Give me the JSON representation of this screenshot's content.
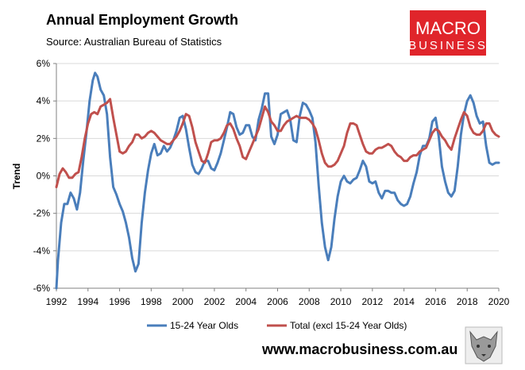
{
  "title": "Annual Employment Growth",
  "subtitle": "Source: Australian Bureau of Statistics",
  "website": "www.macrobusiness.com.au",
  "logo": {
    "line1": "MACRO",
    "line2": "BUSINESS",
    "color": "#e0252b"
  },
  "chart_data": {
    "type": "line",
    "ylabel": "Trend",
    "xlabel": "",
    "xlim": [
      1992,
      2020
    ],
    "ylim": [
      -6,
      6
    ],
    "yticks": [
      "-6%",
      "-4%",
      "-2%",
      "0%",
      "2%",
      "4%",
      "6%"
    ],
    "xticks": [
      "1992",
      "1994",
      "1996",
      "1998",
      "2000",
      "2002",
      "2004",
      "2006",
      "2008",
      "2010",
      "2012",
      "2014",
      "2016",
      "2018",
      "2020"
    ],
    "grid": "horizontal",
    "legend": "bottom",
    "series": [
      {
        "name": "15-24 Year Olds",
        "color": "#4a7ebb",
        "points": [
          [
            1992.0,
            -6.0
          ],
          [
            1992.1,
            -4.5
          ],
          [
            1992.3,
            -2.5
          ],
          [
            1992.5,
            -1.5
          ],
          [
            1992.7,
            -1.5
          ],
          [
            1992.9,
            -0.9
          ],
          [
            1993.1,
            -1.2
          ],
          [
            1993.3,
            -1.8
          ],
          [
            1993.5,
            -0.9
          ],
          [
            1993.7,
            0.8
          ],
          [
            1993.9,
            2.3
          ],
          [
            1994.1,
            4.0
          ],
          [
            1994.3,
            5.1
          ],
          [
            1994.45,
            5.5
          ],
          [
            1994.6,
            5.3
          ],
          [
            1994.8,
            4.6
          ],
          [
            1995.0,
            4.3
          ],
          [
            1995.2,
            3.3
          ],
          [
            1995.4,
            1.0
          ],
          [
            1995.6,
            -0.6
          ],
          [
            1995.8,
            -1.0
          ],
          [
            1996.0,
            -1.5
          ],
          [
            1996.2,
            -1.9
          ],
          [
            1996.4,
            -2.5
          ],
          [
            1996.6,
            -3.3
          ],
          [
            1996.8,
            -4.4
          ],
          [
            1997.0,
            -5.1
          ],
          [
            1997.2,
            -4.7
          ],
          [
            1997.4,
            -2.5
          ],
          [
            1997.6,
            -0.9
          ],
          [
            1997.8,
            0.3
          ],
          [
            1998.0,
            1.2
          ],
          [
            1998.2,
            1.7
          ],
          [
            1998.4,
            1.1
          ],
          [
            1998.6,
            1.2
          ],
          [
            1998.8,
            1.6
          ],
          [
            1999.0,
            1.3
          ],
          [
            1999.2,
            1.5
          ],
          [
            1999.4,
            1.9
          ],
          [
            1999.6,
            2.4
          ],
          [
            1999.8,
            3.1
          ],
          [
            2000.0,
            3.2
          ],
          [
            2000.2,
            2.5
          ],
          [
            2000.4,
            1.5
          ],
          [
            2000.6,
            0.6
          ],
          [
            2000.8,
            0.2
          ],
          [
            2001.0,
            0.1
          ],
          [
            2001.2,
            0.4
          ],
          [
            2001.4,
            0.8
          ],
          [
            2001.6,
            0.8
          ],
          [
            2001.8,
            0.4
          ],
          [
            2002.0,
            0.3
          ],
          [
            2002.2,
            0.7
          ],
          [
            2002.4,
            1.2
          ],
          [
            2002.6,
            1.9
          ],
          [
            2002.8,
            2.6
          ],
          [
            2003.0,
            3.4
          ],
          [
            2003.2,
            3.3
          ],
          [
            2003.4,
            2.6
          ],
          [
            2003.6,
            2.2
          ],
          [
            2003.8,
            2.3
          ],
          [
            2004.0,
            2.7
          ],
          [
            2004.2,
            2.7
          ],
          [
            2004.4,
            2.1
          ],
          [
            2004.6,
            1.9
          ],
          [
            2004.8,
            3.0
          ],
          [
            2005.0,
            3.6
          ],
          [
            2005.2,
            4.4
          ],
          [
            2005.4,
            4.4
          ],
          [
            2005.6,
            2.1
          ],
          [
            2005.8,
            1.7
          ],
          [
            2006.0,
            2.2
          ],
          [
            2006.2,
            3.3
          ],
          [
            2006.4,
            3.4
          ],
          [
            2006.6,
            3.5
          ],
          [
            2006.8,
            3.0
          ],
          [
            2007.0,
            1.9
          ],
          [
            2007.2,
            1.8
          ],
          [
            2007.4,
            3.2
          ],
          [
            2007.6,
            3.9
          ],
          [
            2007.8,
            3.8
          ],
          [
            2008.0,
            3.5
          ],
          [
            2008.2,
            3.1
          ],
          [
            2008.4,
            1.8
          ],
          [
            2008.6,
            -0.5
          ],
          [
            2008.8,
            -2.5
          ],
          [
            2009.0,
            -3.8
          ],
          [
            2009.2,
            -4.5
          ],
          [
            2009.4,
            -3.8
          ],
          [
            2009.6,
            -2.3
          ],
          [
            2009.8,
            -1.1
          ],
          [
            2010.0,
            -0.3
          ],
          [
            2010.2,
            0.0
          ],
          [
            2010.4,
            -0.3
          ],
          [
            2010.6,
            -0.4
          ],
          [
            2010.8,
            -0.2
          ],
          [
            2011.0,
            -0.1
          ],
          [
            2011.2,
            0.3
          ],
          [
            2011.4,
            0.8
          ],
          [
            2011.6,
            0.5
          ],
          [
            2011.8,
            -0.3
          ],
          [
            2012.0,
            -0.4
          ],
          [
            2012.2,
            -0.3
          ],
          [
            2012.4,
            -0.9
          ],
          [
            2012.6,
            -1.2
          ],
          [
            2012.8,
            -0.8
          ],
          [
            2013.0,
            -0.8
          ],
          [
            2013.2,
            -0.9
          ],
          [
            2013.4,
            -0.9
          ],
          [
            2013.6,
            -1.3
          ],
          [
            2013.8,
            -1.5
          ],
          [
            2014.0,
            -1.6
          ],
          [
            2014.2,
            -1.5
          ],
          [
            2014.4,
            -1.1
          ],
          [
            2014.6,
            -0.4
          ],
          [
            2014.8,
            0.2
          ],
          [
            2015.0,
            1.1
          ],
          [
            2015.2,
            1.6
          ],
          [
            2015.4,
            1.6
          ],
          [
            2015.6,
            2.0
          ],
          [
            2015.8,
            2.9
          ],
          [
            2016.0,
            3.1
          ],
          [
            2016.2,
            2.1
          ],
          [
            2016.4,
            0.5
          ],
          [
            2016.6,
            -0.3
          ],
          [
            2016.8,
            -0.9
          ],
          [
            2017.0,
            -1.1
          ],
          [
            2017.2,
            -0.8
          ],
          [
            2017.4,
            0.5
          ],
          [
            2017.6,
            2.2
          ],
          [
            2017.8,
            3.3
          ],
          [
            2018.0,
            4.0
          ],
          [
            2018.2,
            4.3
          ],
          [
            2018.4,
            3.9
          ],
          [
            2018.6,
            3.2
          ],
          [
            2018.8,
            2.8
          ],
          [
            2019.0,
            2.9
          ],
          [
            2019.2,
            1.6
          ],
          [
            2019.4,
            0.7
          ],
          [
            2019.6,
            0.6
          ],
          [
            2019.8,
            0.7
          ],
          [
            2020.0,
            0.7
          ]
        ]
      },
      {
        "name": "Total (excl 15-24 Year Olds)",
        "color": "#c0504d",
        "points": [
          [
            1992.0,
            -0.6
          ],
          [
            1992.2,
            0.1
          ],
          [
            1992.4,
            0.4
          ],
          [
            1992.6,
            0.2
          ],
          [
            1992.8,
            -0.1
          ],
          [
            1993.0,
            -0.1
          ],
          [
            1993.2,
            0.1
          ],
          [
            1993.4,
            0.2
          ],
          [
            1993.6,
            1.0
          ],
          [
            1993.8,
            2.0
          ],
          [
            1994.0,
            2.8
          ],
          [
            1994.2,
            3.3
          ],
          [
            1994.4,
            3.4
          ],
          [
            1994.6,
            3.3
          ],
          [
            1994.8,
            3.7
          ],
          [
            1995.0,
            3.8
          ],
          [
            1995.2,
            3.9
          ],
          [
            1995.4,
            4.1
          ],
          [
            1995.6,
            3.1
          ],
          [
            1995.8,
            2.2
          ],
          [
            1996.0,
            1.3
          ],
          [
            1996.2,
            1.2
          ],
          [
            1996.4,
            1.3
          ],
          [
            1996.6,
            1.6
          ],
          [
            1996.8,
            1.8
          ],
          [
            1997.0,
            2.2
          ],
          [
            1997.2,
            2.2
          ],
          [
            1997.4,
            2.0
          ],
          [
            1997.6,
            2.1
          ],
          [
            1997.8,
            2.3
          ],
          [
            1998.0,
            2.4
          ],
          [
            1998.2,
            2.3
          ],
          [
            1998.4,
            2.1
          ],
          [
            1998.6,
            1.9
          ],
          [
            1998.8,
            1.8
          ],
          [
            1999.0,
            1.7
          ],
          [
            1999.2,
            1.7
          ],
          [
            1999.4,
            1.9
          ],
          [
            1999.6,
            2.1
          ],
          [
            1999.8,
            2.4
          ],
          [
            2000.0,
            2.8
          ],
          [
            2000.2,
            3.3
          ],
          [
            2000.4,
            3.2
          ],
          [
            2000.6,
            2.6
          ],
          [
            2000.8,
            1.8
          ],
          [
            2001.0,
            1.3
          ],
          [
            2001.2,
            0.8
          ],
          [
            2001.4,
            0.7
          ],
          [
            2001.6,
            1.2
          ],
          [
            2001.8,
            1.8
          ],
          [
            2002.0,
            1.9
          ],
          [
            2002.2,
            1.9
          ],
          [
            2002.4,
            2.0
          ],
          [
            2002.6,
            2.3
          ],
          [
            2002.8,
            2.7
          ],
          [
            2003.0,
            2.8
          ],
          [
            2003.2,
            2.5
          ],
          [
            2003.4,
            2.0
          ],
          [
            2003.6,
            1.6
          ],
          [
            2003.8,
            1.0
          ],
          [
            2004.0,
            0.9
          ],
          [
            2004.2,
            1.3
          ],
          [
            2004.4,
            1.7
          ],
          [
            2004.6,
            2.1
          ],
          [
            2004.8,
            2.5
          ],
          [
            2005.0,
            3.1
          ],
          [
            2005.2,
            3.7
          ],
          [
            2005.4,
            3.4
          ],
          [
            2005.6,
            2.9
          ],
          [
            2005.8,
            2.7
          ],
          [
            2006.0,
            2.4
          ],
          [
            2006.2,
            2.4
          ],
          [
            2006.4,
            2.7
          ],
          [
            2006.6,
            2.9
          ],
          [
            2006.8,
            3.0
          ],
          [
            2007.0,
            3.1
          ],
          [
            2007.2,
            3.2
          ],
          [
            2007.4,
            3.1
          ],
          [
            2007.6,
            3.1
          ],
          [
            2007.8,
            3.1
          ],
          [
            2008.0,
            3.0
          ],
          [
            2008.2,
            2.8
          ],
          [
            2008.4,
            2.5
          ],
          [
            2008.6,
            1.9
          ],
          [
            2008.8,
            1.2
          ],
          [
            2009.0,
            0.7
          ],
          [
            2009.2,
            0.5
          ],
          [
            2009.4,
            0.5
          ],
          [
            2009.6,
            0.6
          ],
          [
            2009.8,
            0.8
          ],
          [
            2010.0,
            1.2
          ],
          [
            2010.2,
            1.6
          ],
          [
            2010.4,
            2.3
          ],
          [
            2010.6,
            2.8
          ],
          [
            2010.8,
            2.8
          ],
          [
            2011.0,
            2.7
          ],
          [
            2011.2,
            2.2
          ],
          [
            2011.4,
            1.7
          ],
          [
            2011.6,
            1.3
          ],
          [
            2011.8,
            1.2
          ],
          [
            2012.0,
            1.2
          ],
          [
            2012.2,
            1.4
          ],
          [
            2012.4,
            1.5
          ],
          [
            2012.6,
            1.5
          ],
          [
            2012.8,
            1.6
          ],
          [
            2013.0,
            1.7
          ],
          [
            2013.2,
            1.6
          ],
          [
            2013.4,
            1.3
          ],
          [
            2013.6,
            1.1
          ],
          [
            2013.8,
            1.0
          ],
          [
            2014.0,
            0.8
          ],
          [
            2014.2,
            0.8
          ],
          [
            2014.4,
            1.0
          ],
          [
            2014.6,
            1.1
          ],
          [
            2014.8,
            1.1
          ],
          [
            2015.0,
            1.3
          ],
          [
            2015.2,
            1.4
          ],
          [
            2015.4,
            1.5
          ],
          [
            2015.6,
            1.9
          ],
          [
            2015.8,
            2.3
          ],
          [
            2016.0,
            2.5
          ],
          [
            2016.2,
            2.4
          ],
          [
            2016.4,
            2.1
          ],
          [
            2016.6,
            1.9
          ],
          [
            2016.8,
            1.6
          ],
          [
            2017.0,
            1.4
          ],
          [
            2017.2,
            2.0
          ],
          [
            2017.4,
            2.5
          ],
          [
            2017.6,
            3.0
          ],
          [
            2017.8,
            3.4
          ],
          [
            2018.0,
            3.2
          ],
          [
            2018.2,
            2.6
          ],
          [
            2018.4,
            2.3
          ],
          [
            2018.6,
            2.2
          ],
          [
            2018.8,
            2.2
          ],
          [
            2019.0,
            2.4
          ],
          [
            2019.2,
            2.8
          ],
          [
            2019.4,
            2.8
          ],
          [
            2019.6,
            2.4
          ],
          [
            2019.8,
            2.2
          ],
          [
            2020.0,
            2.1
          ]
        ]
      }
    ]
  }
}
